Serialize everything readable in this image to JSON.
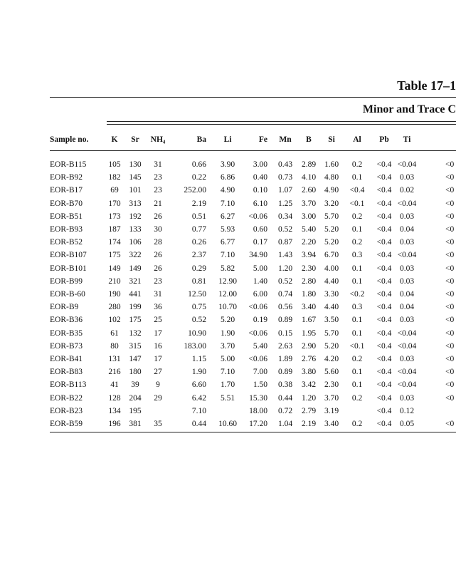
{
  "header": {
    "title": "Table 17–1",
    "subtitle": "Minor and Trace C"
  },
  "table": {
    "columns": [
      "Sample no.",
      "K",
      "Sr",
      "NH₄",
      "Ba",
      "Li",
      "Fe",
      "Mn",
      "B",
      "Si",
      "Al",
      "Pb",
      "Ti",
      null
    ],
    "rows": [
      [
        "EOR-B115",
        "105",
        "130",
        "31",
        "0.66",
        "3.90",
        "3.00",
        "0.43",
        "2.89",
        "1.60",
        "0.2",
        "<0.4",
        "<0.04",
        "<0"
      ],
      [
        "EOR-B92",
        "182",
        "145",
        "23",
        "0.22",
        "6.86",
        "0.40",
        "0.73",
        "4.10",
        "4.80",
        "0.1",
        "<0.4",
        "0.03",
        "<0"
      ],
      [
        "EOR-B17",
        "69",
        "101",
        "23",
        "252.00",
        "4.90",
        "0.10",
        "1.07",
        "2.60",
        "4.90",
        "<0.4",
        "<0.4",
        "0.02",
        "<0"
      ],
      [
        "EOR-B70",
        "170",
        "313",
        "21",
        "2.19",
        "7.10",
        "6.10",
        "1.25",
        "3.70",
        "3.20",
        "<0.1",
        "<0.4",
        "<0.04",
        "<0"
      ],
      [
        "EOR-B51",
        "173",
        "192",
        "26",
        "0.51",
        "6.27",
        "<0.06",
        "0.34",
        "3.00",
        "5.70",
        "0.2",
        "<0.4",
        "0.03",
        "<0"
      ],
      [
        "EOR-B93",
        "187",
        "133",
        "30",
        "0.77",
        "5.93",
        "0.60",
        "0.52",
        "5.40",
        "5.20",
        "0.1",
        "<0.4",
        "0.04",
        "<0"
      ],
      [
        "EOR-B52",
        "174",
        "106",
        "28",
        "0.26",
        "6.77",
        "0.17",
        "0.87",
        "2.20",
        "5.20",
        "0.2",
        "<0.4",
        "0.03",
        "<0"
      ],
      [
        "EOR-B107",
        "175",
        "322",
        "26",
        "2.37",
        "7.10",
        "34.90",
        "1.43",
        "3.94",
        "6.70",
        "0.3",
        "<0.4",
        "<0.04",
        "<0"
      ],
      [
        "EOR-B101",
        "149",
        "149",
        "26",
        "0.29",
        "5.82",
        "5.00",
        "1.20",
        "2.30",
        "4.00",
        "0.1",
        "<0.4",
        "0.03",
        "<0"
      ],
      [
        "EOR-B99",
        "210",
        "321",
        "23",
        "0.81",
        "12.90",
        "1.40",
        "0.52",
        "2.80",
        "4.40",
        "0.1",
        "<0.4",
        "0.03",
        "<0"
      ],
      [
        "EOR-B-60",
        "190",
        "441",
        "31",
        "12.50",
        "12.00",
        "6.00",
        "0.74",
        "1.80",
        "3.30",
        "<0.2",
        "<0.4",
        "0.04",
        "<0"
      ],
      [
        "EOR-B9",
        "280",
        "199",
        "36",
        "0.75",
        "10.70",
        "<0.06",
        "0.56",
        "3.40",
        "4.40",
        "0.3",
        "<0.4",
        "0.04",
        "<0"
      ],
      [
        "EOR-B36",
        "102",
        "175",
        "25",
        "0.52",
        "5.20",
        "0.19",
        "0.89",
        "1.67",
        "3.50",
        "0.1",
        "<0.4",
        "0.03",
        "<0"
      ],
      [
        "EOR-B35",
        "61",
        "132",
        "17",
        "10.90",
        "1.90",
        "<0.06",
        "0.15",
        "1.95",
        "5.70",
        "0.1",
        "<0.4",
        "<0.04",
        "<0"
      ],
      [
        "EOR-B73",
        "80",
        "315",
        "16",
        "183.00",
        "3.70",
        "5.40",
        "2.63",
        "2.90",
        "5.20",
        "<0.1",
        "<0.4",
        "<0.04",
        "<0"
      ],
      [
        "EOR-B41",
        "131",
        "147",
        "17",
        "1.15",
        "5.00",
        "<0.06",
        "1.89",
        "2.76",
        "4.20",
        "0.2",
        "<0.4",
        "0.03",
        "<0"
      ],
      [
        "EOR-B83",
        "216",
        "180",
        "27",
        "1.90",
        "7.10",
        "7.00",
        "0.89",
        "3.80",
        "5.60",
        "0.1",
        "<0.4",
        "<0.04",
        "<0"
      ],
      [
        "EOR-B113",
        "41",
        "39",
        "9",
        "6.60",
        "1.70",
        "1.50",
        "0.38",
        "3.42",
        "2.30",
        "0.1",
        "<0.4",
        "<0.04",
        "<0"
      ],
      [
        "EOR-B22",
        "128",
        "204",
        "29",
        "6.42",
        "5.51",
        "15.30",
        "0.44",
        "1.20",
        "3.70",
        "0.2",
        "<0.4",
        "0.03",
        "<0"
      ],
      [
        "EOR-B23",
        "134",
        "195",
        null,
        "7.10",
        null,
        "18.00",
        "0.72",
        "2.79",
        "3.19",
        null,
        "<0.4",
        "0.12",
        null
      ],
      [
        "EOR-B59",
        "196",
        "381",
        "35",
        "0.44",
        "10.60",
        "17.20",
        "1.04",
        "2.19",
        "3.40",
        "0.2",
        "<0.4",
        "0.05",
        "<0"
      ]
    ]
  }
}
